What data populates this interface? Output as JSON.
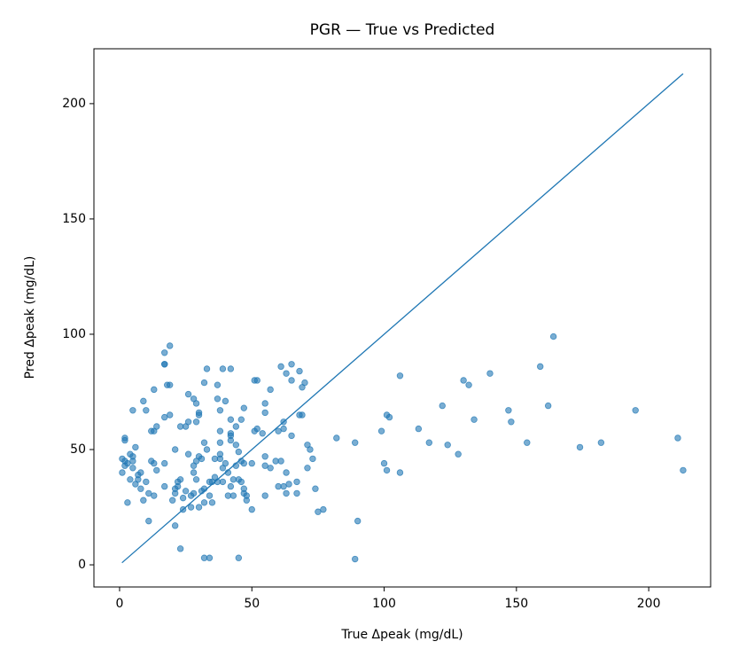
{
  "chart_data": {
    "type": "scatter",
    "title": "PGR — True vs Predicted",
    "x_label": "True Δpeak (mg/dL)",
    "y_label": "Pred Δpeak (mg/dL)",
    "xlim": [
      -9.7,
      223.4
    ],
    "ylim": [
      -9.6,
      223.8
    ],
    "xticks": [
      0,
      50,
      100,
      150,
      200
    ],
    "yticks": [
      0,
      50,
      100,
      150,
      200
    ],
    "grid": false,
    "series": [
      {
        "color": "#1f77b4",
        "x": [
          164,
          159,
          140,
          130,
          132,
          106,
          122,
          162,
          147,
          195,
          101,
          102,
          134,
          148,
          113,
          99,
          82,
          89,
          117,
          124,
          154,
          182,
          211,
          128,
          174,
          100,
          101,
          106,
          213,
          90,
          89,
          77,
          75,
          74,
          73,
          72,
          71,
          71,
          70,
          69,
          68,
          69,
          68,
          67,
          67,
          65,
          65,
          65,
          62,
          62,
          63,
          61,
          61,
          59,
          60,
          60,
          63,
          62,
          63,
          64,
          57,
          55,
          55,
          54,
          55,
          55,
          55,
          57,
          52,
          51,
          52,
          51,
          50,
          50,
          47,
          46,
          44,
          42,
          42,
          42,
          42,
          42,
          40,
          39,
          37,
          37,
          38,
          38,
          38,
          38,
          38,
          36,
          39,
          40,
          41,
          39,
          37,
          36,
          35,
          34,
          34,
          35,
          34,
          32,
          32,
          32,
          33,
          32,
          32,
          33,
          31,
          30,
          30,
          30,
          29,
          28,
          29,
          26,
          26,
          25,
          23,
          23,
          22,
          23,
          21,
          21,
          20,
          21,
          19,
          18,
          19,
          19,
          17,
          17,
          17,
          17,
          17,
          17,
          14,
          12,
          13,
          13,
          13,
          13,
          14,
          12,
          11,
          11,
          10,
          9,
          10,
          9,
          8,
          8,
          7,
          7,
          6,
          5,
          5,
          5,
          6,
          5,
          4,
          4,
          3,
          2,
          2,
          2,
          1,
          1,
          2,
          3,
          45,
          44,
          46,
          47,
          46,
          45,
          47,
          48,
          48,
          47,
          43,
          42,
          43,
          41,
          28,
          27,
          27,
          28,
          29,
          30,
          31,
          25,
          24,
          24,
          26,
          28,
          29,
          22,
          21,
          45,
          44
        ],
        "values": [
          99,
          86,
          83,
          80,
          78,
          82,
          69,
          69,
          67,
          67,
          65,
          64,
          63,
          62,
          59,
          58,
          55,
          53,
          53,
          52,
          53,
          53,
          55,
          48,
          51,
          44,
          41,
          40,
          41,
          19,
          2.5,
          24,
          23,
          33,
          46,
          50,
          52,
          42,
          79,
          77,
          84,
          65,
          65,
          36,
          31,
          56,
          80,
          87,
          59,
          62,
          83,
          86,
          45,
          45,
          58,
          34,
          40,
          34,
          31,
          35,
          76,
          70,
          66,
          57,
          47,
          43,
          30,
          42,
          80,
          80,
          59,
          58,
          44,
          24,
          68,
          63,
          60,
          85,
          57,
          56,
          54,
          63,
          71,
          85,
          78,
          72,
          67,
          58,
          53,
          48,
          46,
          46,
          42,
          44,
          40,
          36,
          36,
          38,
          36,
          36,
          30,
          27,
          3,
          3,
          27,
          33,
          85,
          79,
          53,
          50,
          46,
          47,
          66,
          65,
          70,
          72,
          62,
          74,
          62,
          60,
          60,
          37,
          34,
          7,
          17,
          31,
          28,
          50,
          95,
          78,
          78,
          65,
          92,
          87,
          87,
          64,
          44,
          34,
          60,
          58,
          58,
          76,
          44,
          30,
          41,
          45,
          31,
          19,
          67,
          71,
          36,
          28,
          40,
          33,
          37,
          39,
          35,
          47,
          42,
          67,
          51,
          45,
          48,
          37,
          27,
          54,
          55,
          43,
          46,
          40,
          45,
          44,
          3,
          43,
          45,
          44,
          36,
          37,
          31,
          28,
          30,
          33,
          37,
          34,
          30,
          30,
          31,
          30,
          25,
          40,
          37,
          25,
          32,
          32,
          29,
          24,
          48,
          43,
          45,
          36,
          33,
          49,
          52
        ]
      }
    ],
    "reference_line": {
      "color": "#1f77b4",
      "x": [
        0.9,
        213
      ],
      "values": [
        0.9,
        213
      ]
    }
  }
}
